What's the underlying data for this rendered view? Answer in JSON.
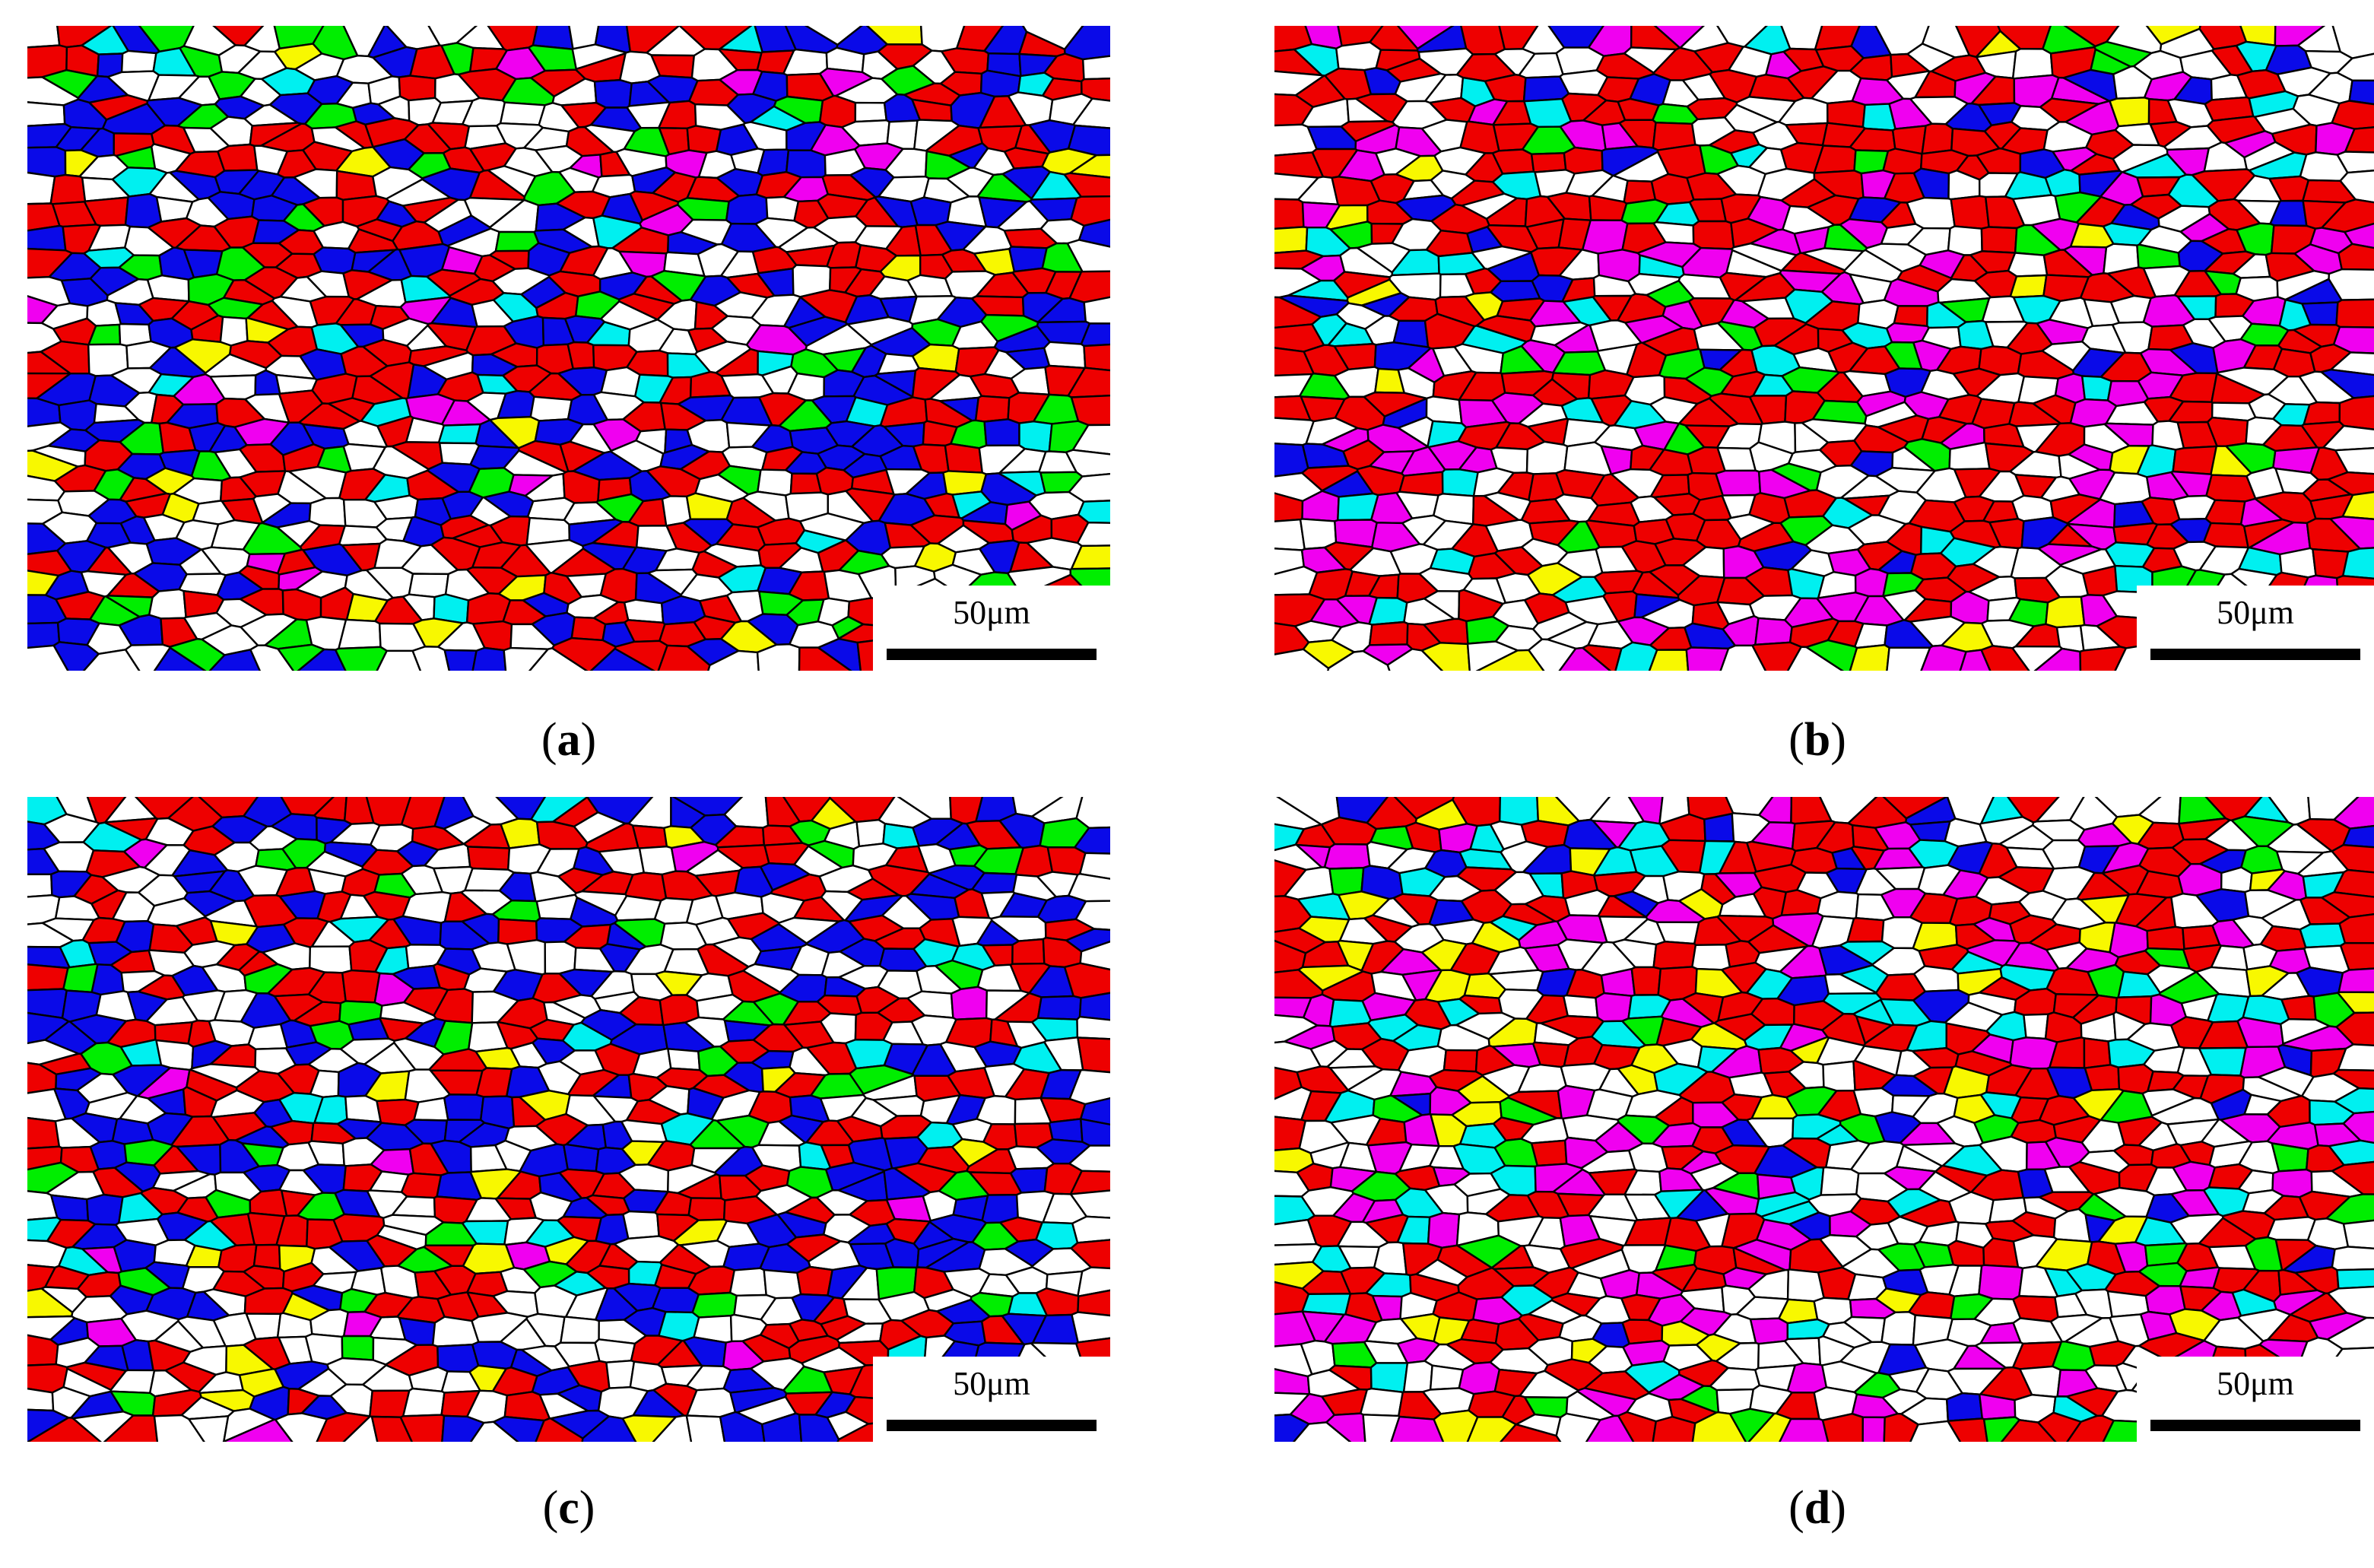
{
  "panels": [
    {
      "id": "a",
      "caption_letter": "a",
      "scale_label": "50μm",
      "palette_weights": {
        "red": 0.3,
        "blue": 0.24,
        "white": 0.3,
        "green": 0.07,
        "cyan": 0.03,
        "yellow": 0.03,
        "magenta": 0.03
      }
    },
    {
      "id": "b",
      "caption_letter": "b",
      "scale_label": "50μm",
      "palette_weights": {
        "red": 0.4,
        "blue": 0.06,
        "white": 0.28,
        "green": 0.04,
        "cyan": 0.06,
        "yellow": 0.03,
        "magenta": 0.13
      }
    },
    {
      "id": "c",
      "caption_letter": "c",
      "scale_label": "50μm",
      "palette_weights": {
        "red": 0.3,
        "blue": 0.22,
        "white": 0.34,
        "green": 0.06,
        "cyan": 0.03,
        "yellow": 0.03,
        "magenta": 0.02
      }
    },
    {
      "id": "d",
      "caption_letter": "d",
      "scale_label": "50μm",
      "palette_weights": {
        "red": 0.3,
        "blue": 0.06,
        "white": 0.3,
        "green": 0.05,
        "cyan": 0.09,
        "yellow": 0.06,
        "magenta": 0.14
      }
    }
  ],
  "colors": {
    "red": "#ee0000",
    "blue": "#0a0ae8",
    "white": "#ffffff",
    "green": "#00ee00",
    "cyan": "#00f0f0",
    "yellow": "#f8f800",
    "magenta": "#f000f0",
    "boundary": "#000000"
  }
}
